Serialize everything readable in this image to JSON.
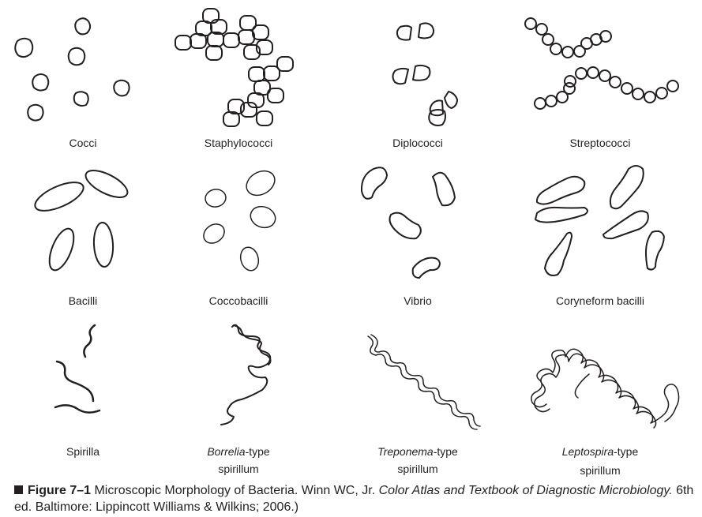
{
  "labels": {
    "cocci": "Cocci",
    "staphylococci": "Staphylococci",
    "diplococci": "Diplococci",
    "streptococci": "Streptococci",
    "bacilli": "Bacilli",
    "coccobacilli": "Coccobacilli",
    "vibrio": "Vibrio",
    "coryneform": "Coryneform bacilli",
    "spirilla": "Spirilla",
    "borrelia_italic": "Borrelia",
    "borrelia_rest": "-type",
    "borrelia_line2": "spirillum",
    "treponema_italic": "Treponema",
    "treponema_rest": "-type",
    "treponema_line2": "spirillum",
    "leptospira_italic": "Leptospira",
    "leptospira_rest": "-type",
    "leptospira_line2": "spirillum"
  },
  "caption": {
    "figure_number": "Figure 7–1",
    "text_1": " Microscopic Morphology of Bacteria. Winn WC, Jr. ",
    "book_title": "Color Atlas and Textbook of Diagnostic Microbiology.",
    "text_2": " 6th ed. Baltimore: Lippincott Williams & Wilkins; 2006.)"
  },
  "colors": {
    "ink": "#231f20",
    "background": "#ffffff"
  }
}
